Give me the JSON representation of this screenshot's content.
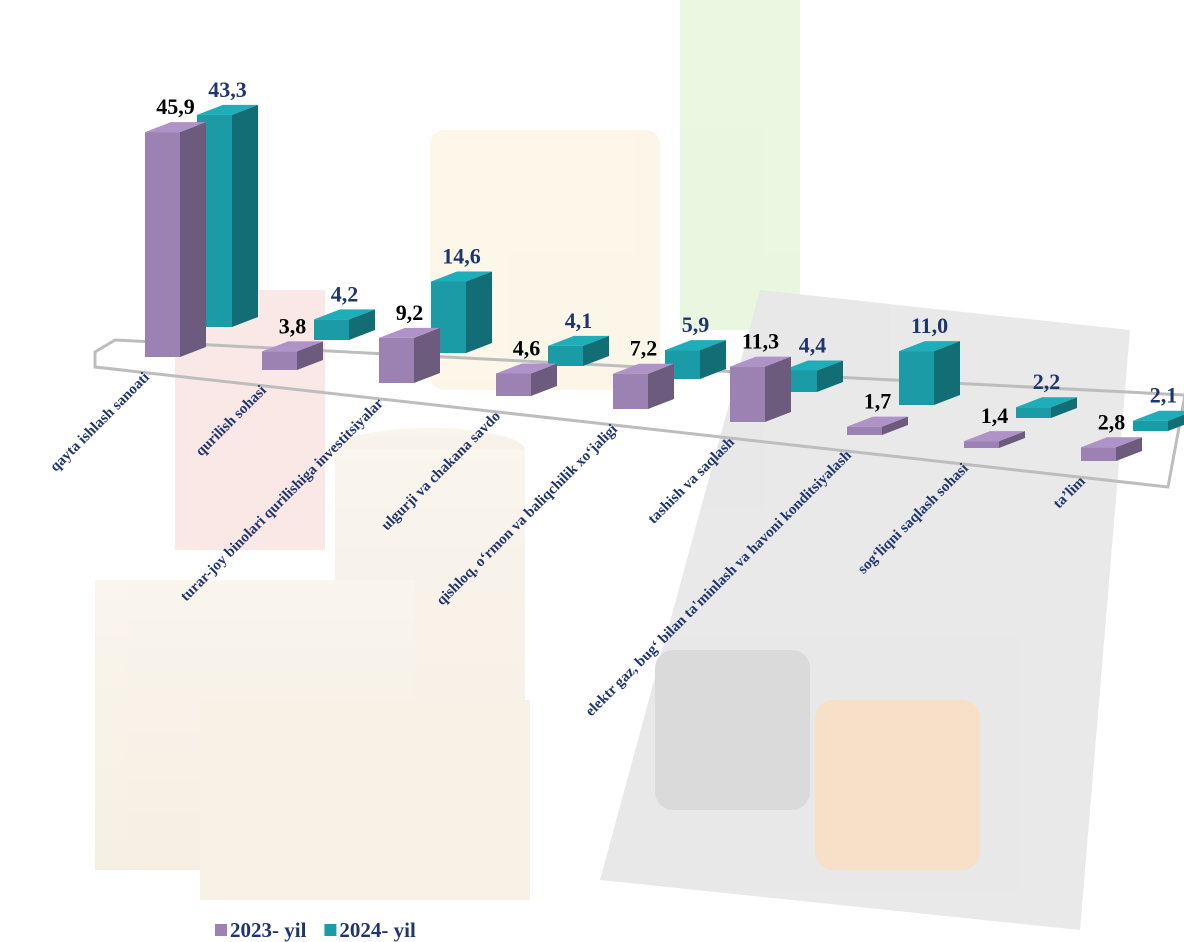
{
  "chart_data": {
    "type": "bar3d",
    "categories": [
      "qayta ishlash sanoati",
      "qurilish sohasi",
      "turar-joy binolari qurilishiga investitsiyalar",
      "ulgurji va chakana savdo",
      "qishloq, o‘rmon va baliqchilik xo‘jaligi",
      "tashish va saqlash",
      "elektr gaz, bug‘ bilan ta'minlash va havoni konditsiyalash",
      "sog‘liqni saqlash sohasi",
      "ta’lim"
    ],
    "series": [
      {
        "name": "2023- yil",
        "color": "#9b82b3",
        "label_color": "#000000",
        "values": [
          45.9,
          3.8,
          9.2,
          4.6,
          7.2,
          11.3,
          1.7,
          1.4,
          2.8
        ],
        "value_labels": [
          "45,9",
          "3,8",
          "9,2",
          "4,6",
          "7,2",
          "11,3",
          "1,7",
          "1,4",
          "2,8"
        ]
      },
      {
        "name": "2024- yil",
        "color": "#1a9ba6",
        "label_color": "#1f3570",
        "values": [
          43.3,
          4.2,
          14.6,
          4.1,
          5.9,
          4.4,
          11.0,
          2.2,
          2.1
        ],
        "value_labels": [
          "43,3",
          "4,2",
          "14,6",
          "4,1",
          "5,9",
          "4,4",
          "11,0",
          "2,2",
          "2,1"
        ]
      }
    ],
    "legend": "bottom-left"
  }
}
